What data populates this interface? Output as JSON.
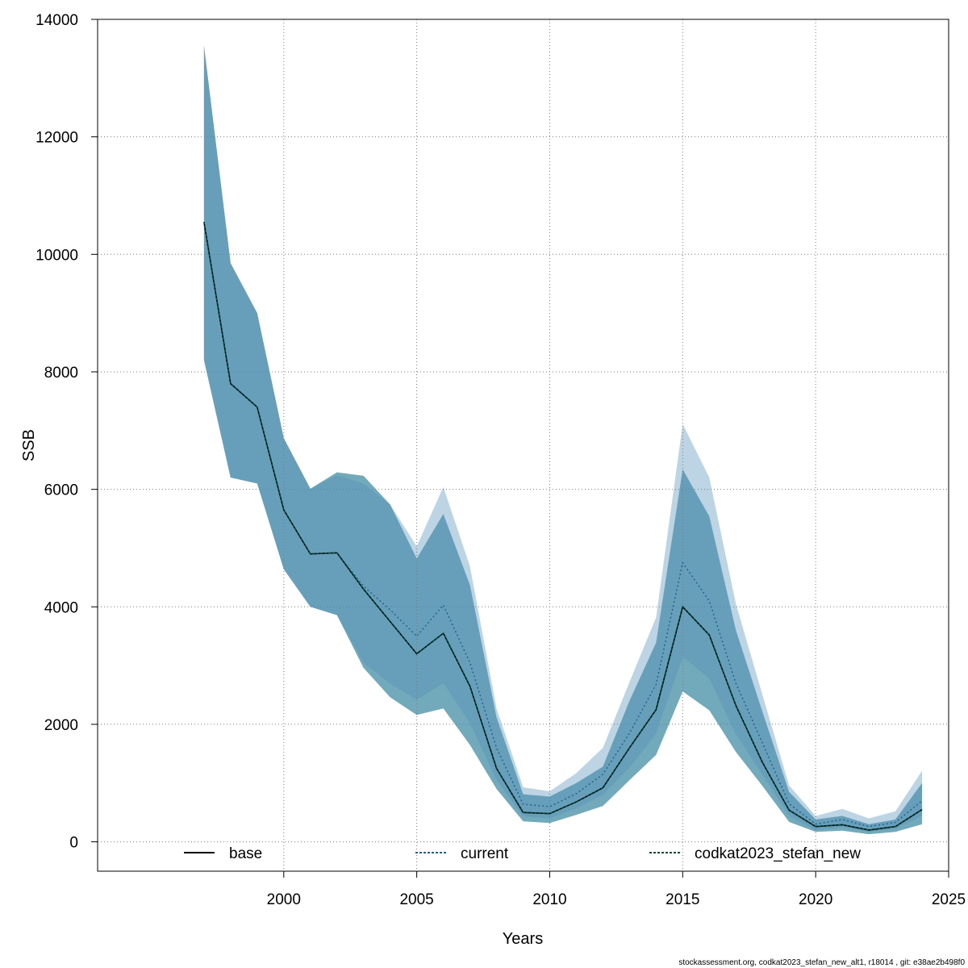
{
  "chart_data": {
    "type": "area",
    "xlabel": "Years",
    "ylabel": "SSB",
    "xlim": [
      1993,
      2025
    ],
    "ylim": [
      -500,
      14000
    ],
    "xticks": [
      2000,
      2005,
      2010,
      2015,
      2020,
      2025
    ],
    "yticks": [
      0,
      2000,
      4000,
      6000,
      8000,
      10000,
      12000,
      14000
    ],
    "grid": true,
    "legend_position": "bottom",
    "legend": [
      "base",
      "current",
      "codkat2023_stefan_new"
    ],
    "years": [
      1997,
      1998,
      1999,
      2000,
      2001,
      2002,
      2003,
      2004,
      2005,
      2006,
      2007,
      2008,
      2009,
      2010,
      2011,
      2012,
      2013,
      2014,
      2015,
      2016,
      2017,
      2018,
      2019,
      2020,
      2021,
      2022,
      2023,
      2024
    ],
    "series": [
      {
        "name": "base",
        "color": "#000000",
        "dash": "solid",
        "band_color": "#4682b4",
        "values": [
          10550,
          7800,
          7400,
          5650,
          4900,
          4920,
          4300,
          3750,
          3200,
          3550,
          2650,
          1250,
          500,
          480,
          680,
          920,
          1600,
          2250,
          4000,
          3520,
          2320,
          1350,
          540,
          260,
          290,
          200,
          260,
          550
        ],
        "upper": [
          13550,
          9850,
          9000,
          6870,
          6010,
          6290,
          6230,
          5740,
          4820,
          5580,
          4370,
          2120,
          810,
          770,
          1000,
          1280,
          2400,
          3390,
          6340,
          5540,
          3600,
          2210,
          850,
          380,
          440,
          300,
          380,
          1000
        ],
        "lower": [
          8200,
          6200,
          6100,
          4640,
          4000,
          3860,
          2960,
          2460,
          2160,
          2270,
          1650,
          900,
          350,
          320,
          460,
          610,
          1050,
          1480,
          2560,
          2240,
          1530,
          950,
          340,
          170,
          190,
          130,
          170,
          300
        ]
      },
      {
        "name": "current",
        "color": "#1f5f8b",
        "dash": "dotted",
        "band_color": "#6a9fc0",
        "values": [
          10550,
          7800,
          7400,
          5650,
          4900,
          4920,
          4350,
          3950,
          3500,
          4030,
          3050,
          1600,
          640,
          600,
          820,
          1150,
          1850,
          2680,
          4750,
          4100,
          2700,
          1680,
          650,
          300,
          380,
          260,
          330,
          700
        ],
        "upper": [
          13550,
          9850,
          9000,
          6870,
          6010,
          6240,
          6100,
          5740,
          5030,
          6040,
          4690,
          2270,
          930,
          860,
          1170,
          1600,
          2720,
          3820,
          7110,
          6200,
          4050,
          2500,
          960,
          440,
          560,
          400,
          520,
          1210
        ],
        "lower": [
          8200,
          6200,
          6100,
          4640,
          4000,
          3860,
          3050,
          2690,
          2420,
          2700,
          2020,
          1050,
          430,
          400,
          570,
          800,
          1260,
          1840,
          3150,
          2780,
          1830,
          1140,
          440,
          200,
          250,
          170,
          220,
          440
        ]
      },
      {
        "name": "codkat2023_stefan_new",
        "color": "#004d40",
        "dash": "dotted",
        "band_color": "#40a090",
        "values": [
          10550,
          7800,
          7400,
          5650,
          4900,
          4920,
          4300,
          3750,
          3200,
          3550,
          2650,
          1250,
          500,
          480,
          680,
          920,
          1600,
          2250,
          4000,
          3520,
          2320,
          1350,
          540,
          260,
          290,
          200,
          260,
          550
        ],
        "upper": [
          13550,
          9850,
          9000,
          6870,
          6010,
          6290,
          6230,
          5740,
          4820,
          5580,
          4370,
          2120,
          810,
          770,
          1000,
          1280,
          2400,
          3390,
          6340,
          5540,
          3600,
          2210,
          850,
          380,
          440,
          300,
          380,
          1000
        ],
        "lower": [
          8200,
          6200,
          6100,
          4640,
          4000,
          3860,
          2960,
          2460,
          2160,
          2270,
          1650,
          900,
          350,
          320,
          460,
          610,
          1050,
          1480,
          2560,
          2240,
          1530,
          950,
          340,
          170,
          190,
          130,
          170,
          300
        ]
      }
    ]
  },
  "footer_text": "stockassessment.org, codkat2023_stefan_new_alt1, r18014 , git: e38ae2b498f0"
}
